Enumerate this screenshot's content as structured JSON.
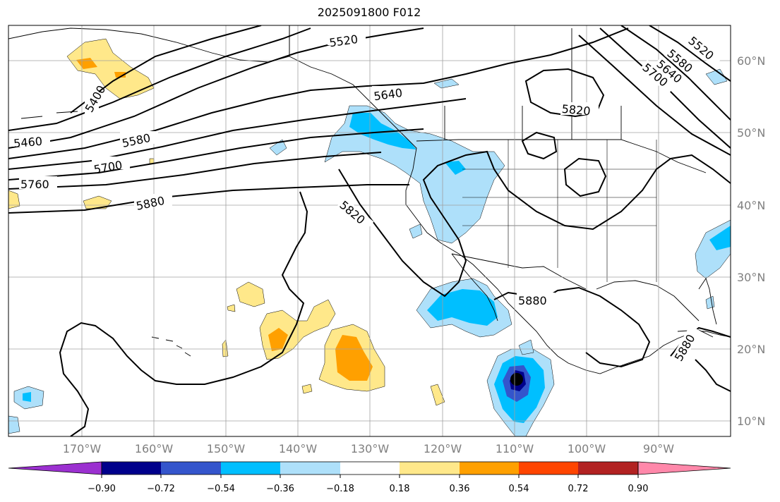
{
  "title": "2025091800 F012",
  "lat_labels": [
    "60°N",
    "50°N",
    "40°N",
    "30°N",
    "20°N",
    "10°N"
  ],
  "lon_labels": [
    "170°W",
    "160°W",
    "150°W",
    "140°W",
    "130°W",
    "120°W",
    "110°W",
    "100°W",
    "90°W"
  ],
  "contour_labels": [
    "5520",
    "5400",
    "5640",
    "5460",
    "5580",
    "5700",
    "5760",
    "5880",
    "5820",
    "5820",
    "5880",
    "5580",
    "5640",
    "5700",
    "5520",
    "5880"
  ],
  "colorbar": {
    "tick_labels": [
      "−0.90",
      "−0.72",
      "−0.54",
      "−0.36",
      "−0.18",
      "0.18",
      "0.36",
      "0.54",
      "0.72",
      "0.90"
    ],
    "colors": [
      "#9b30d0",
      "#00008b",
      "#3455cc",
      "#00bfff",
      "#aee0fa",
      "#ffffff",
      "#ffe88a",
      "#ffa000",
      "#ff4500",
      "#b22222",
      "#ff88aa"
    ]
  }
}
